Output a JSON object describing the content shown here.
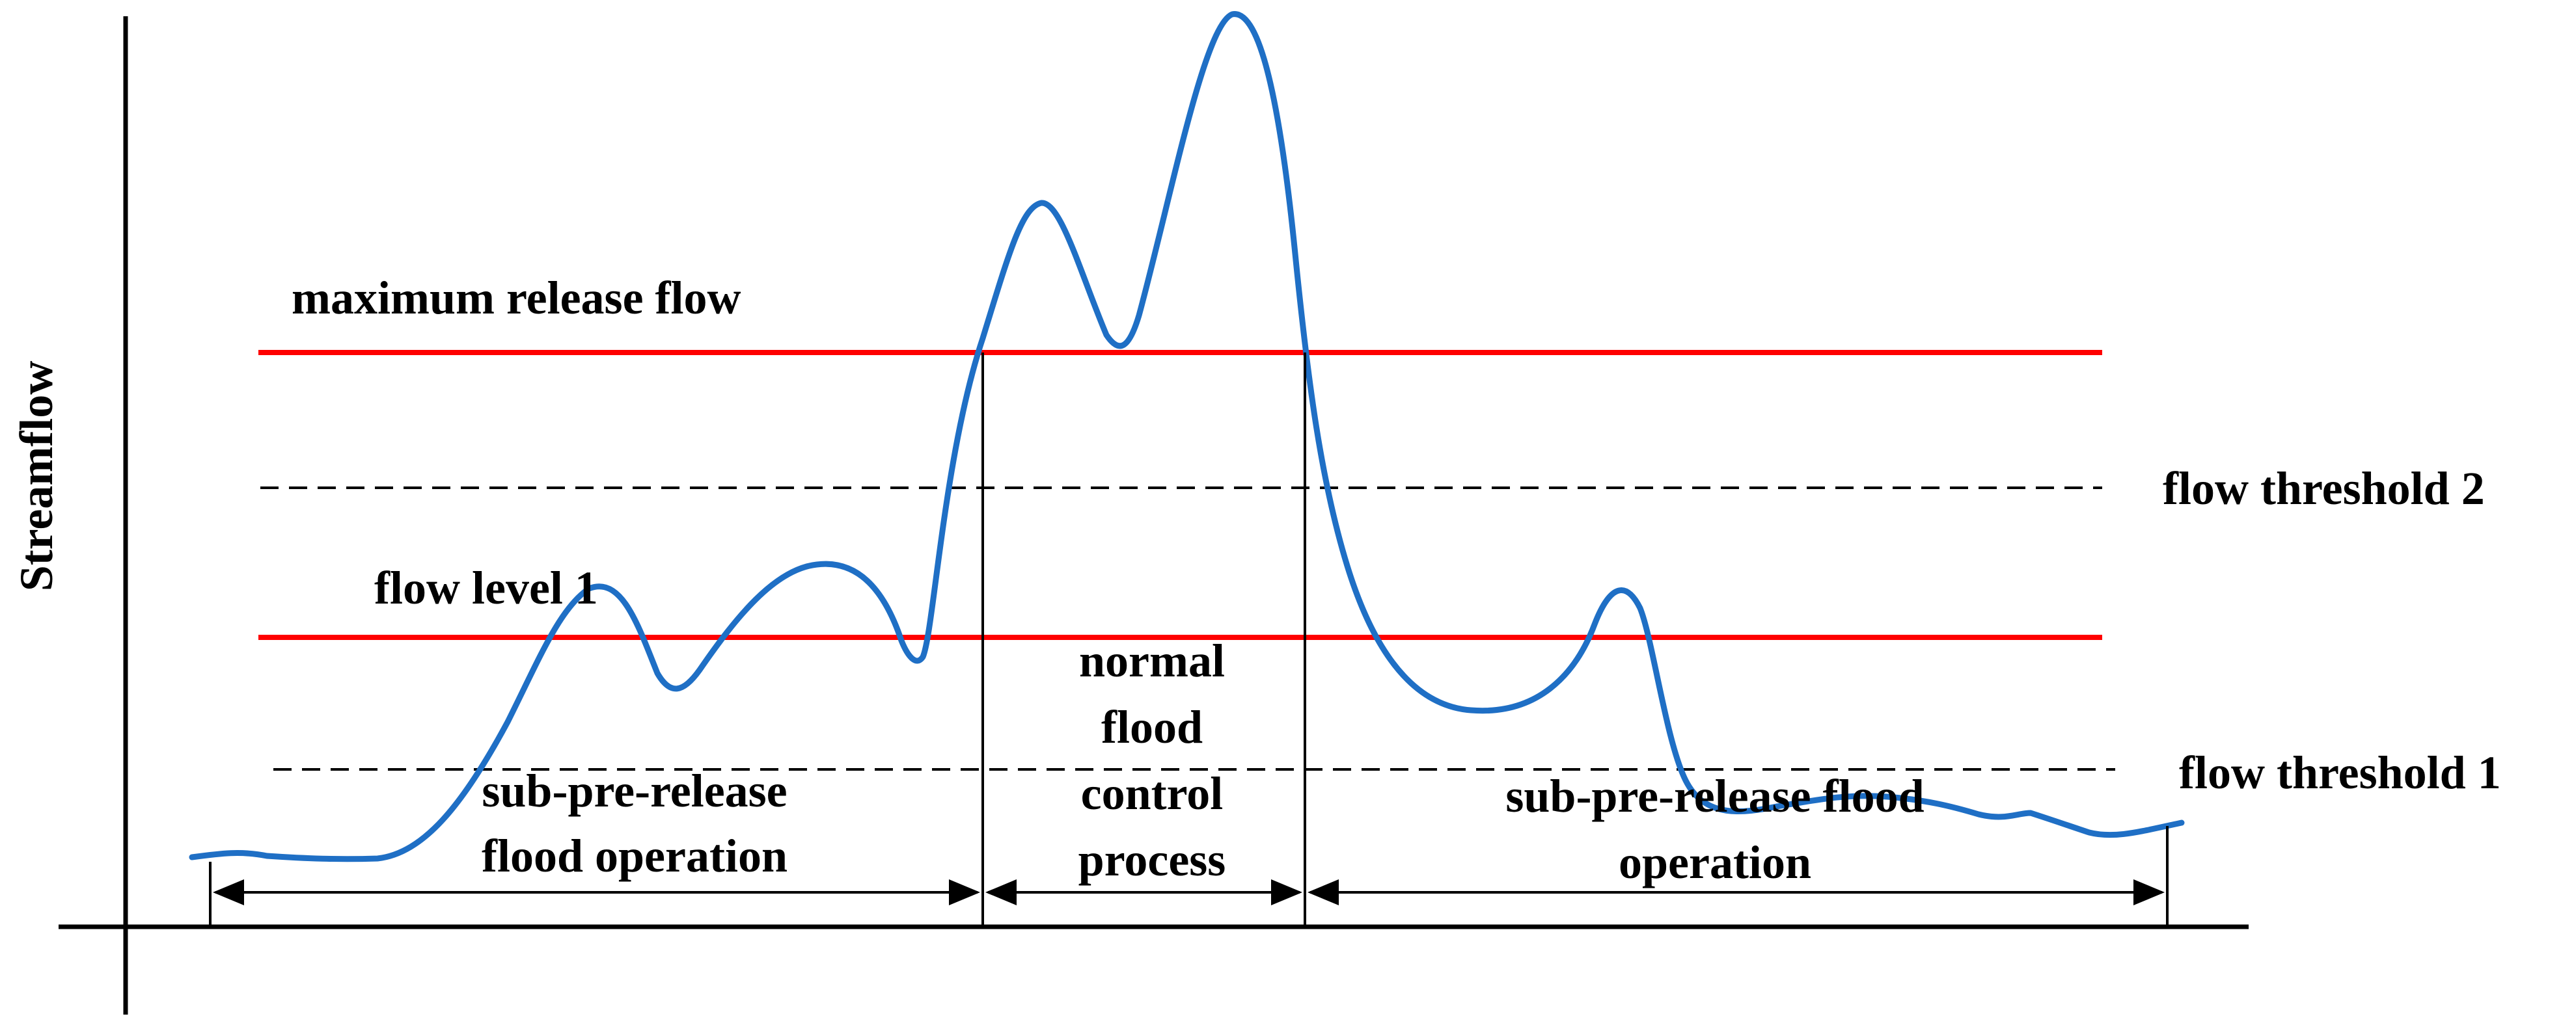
{
  "y_axis_label": "Streamflow",
  "lines": {
    "max_release_label": "maximum release flow",
    "flow_level_label": "flow level 1",
    "threshold_2_label": "flow threshold 2",
    "threshold_1_label": "flow threshold 1"
  },
  "periods": {
    "left_line1": "sub-pre-release",
    "left_line2": "flood operation",
    "middle_line1": "normal",
    "middle_line2": "flood",
    "middle_line3": "control",
    "middle_line4": "process",
    "right_line1": "sub-pre-release flood",
    "right_line2": "operation"
  },
  "colors": {
    "curve": "#1f6fc5",
    "level_lines": "#ff0000",
    "axes": "#000000",
    "threshold_lines": "#000000"
  }
}
